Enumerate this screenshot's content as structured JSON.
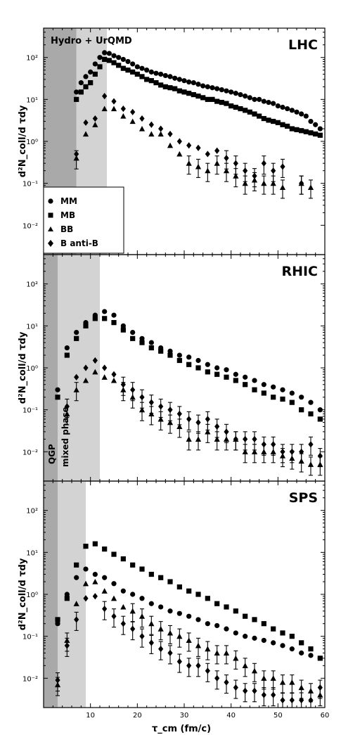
{
  "figure": {
    "xlabel": "τ_cm (fm/c)",
    "ylabel": "d²N_coll/d τdy",
    "xlim": [
      0,
      60
    ],
    "xticks": [
      10,
      20,
      30,
      40,
      50,
      60
    ],
    "colors": {
      "dark_band": "#a9a9a9",
      "light_band": "#d3d3d3",
      "marker": "#000000"
    }
  },
  "legend": {
    "placement": "lower-left of top panel",
    "items": [
      {
        "label": "MM",
        "marker": "circle"
      },
      {
        "label": "MB",
        "marker": "square"
      },
      {
        "label": "BB",
        "marker": "triangle"
      },
      {
        "label": "B anti-B",
        "marker": "diamond"
      }
    ]
  },
  "chart_data": [
    {
      "type": "scatter",
      "title": "LHC",
      "annotation": "Hydro + UrQMD",
      "yscale": "log",
      "ylim": [
        0.002,
        500
      ],
      "yticks": [
        "10²",
        "10¹",
        "10⁰",
        "10⁻¹",
        "10⁻²"
      ],
      "ytick_values": [
        100,
        10,
        1,
        0.1,
        0.01
      ],
      "bands": {
        "dark": [
          0,
          7
        ],
        "light": [
          7,
          13.5
        ]
      },
      "series": [
        {
          "name": "MM",
          "marker": "circle",
          "x": [
            7,
            8,
            9,
            10,
            11,
            12,
            13,
            14,
            15,
            16,
            17,
            18,
            19,
            20,
            21,
            22,
            23,
            24,
            25,
            26,
            27,
            28,
            29,
            30,
            31,
            32,
            33,
            34,
            35,
            36,
            37,
            38,
            39,
            40,
            41,
            42,
            43,
            44,
            45,
            46,
            47,
            48,
            49,
            50,
            51,
            52,
            53,
            54,
            55,
            56,
            57,
            58,
            59
          ],
          "y": [
            15,
            25,
            35,
            45,
            70,
            100,
            130,
            125,
            110,
            100,
            90,
            80,
            70,
            60,
            55,
            50,
            45,
            42,
            40,
            37,
            35,
            32,
            30,
            28,
            26,
            25,
            23,
            21,
            20,
            19,
            18,
            17,
            16,
            15,
            14,
            13,
            12,
            11,
            10,
            10,
            9,
            8.5,
            8,
            7,
            6.5,
            6,
            5.5,
            5,
            4.5,
            4,
            3,
            2.5,
            2
          ]
        },
        {
          "name": "MB",
          "marker": "square",
          "x": [
            7,
            8,
            9,
            10,
            11,
            12,
            13,
            14,
            15,
            16,
            17,
            18,
            19,
            20,
            21,
            22,
            23,
            24,
            25,
            26,
            27,
            28,
            29,
            30,
            31,
            32,
            33,
            34,
            35,
            36,
            37,
            38,
            39,
            40,
            41,
            42,
            43,
            44,
            45,
            46,
            47,
            48,
            49,
            50,
            51,
            52,
            53,
            54,
            55,
            56,
            57,
            58,
            59
          ],
          "y": [
            10,
            15,
            20,
            25,
            40,
            60,
            90,
            85,
            75,
            65,
            55,
            50,
            45,
            40,
            35,
            30,
            28,
            25,
            22,
            20,
            19,
            18,
            16,
            15,
            14,
            13,
            12,
            11,
            10,
            10,
            9,
            8.5,
            8,
            7,
            6.5,
            6,
            5.5,
            5,
            4.5,
            4,
            3.5,
            3.2,
            3,
            2.8,
            2.5,
            2.3,
            2,
            1.9,
            1.8,
            1.7,
            1.6,
            1.5,
            1.4
          ]
        },
        {
          "name": "BB",
          "marker": "triangle",
          "x": [
            7,
            9,
            11,
            13,
            15,
            17,
            19,
            21,
            23,
            25,
            27,
            29,
            31,
            33,
            35,
            37,
            39,
            41,
            43,
            45,
            47,
            49,
            51,
            55,
            57
          ],
          "y": [
            0.4,
            1.5,
            2.5,
            6,
            6,
            4,
            3,
            2,
            1.5,
            1.5,
            0.8,
            0.5,
            0.3,
            0.25,
            0.2,
            0.3,
            0.2,
            0.15,
            0.1,
            0.12,
            0.1,
            0.1,
            0.08,
            0.1,
            0.08
          ]
        },
        {
          "name": "B anti-B",
          "marker": "diamond",
          "x": [
            7,
            9,
            11,
            13,
            15,
            17,
            19,
            21,
            23,
            25,
            27,
            29,
            31,
            33,
            35,
            37,
            39,
            41,
            43,
            45,
            47,
            49,
            51,
            55
          ],
          "y": [
            0.5,
            2.8,
            3.5,
            12,
            9,
            6,
            5,
            3.5,
            2.5,
            2,
            1.5,
            1,
            0.8,
            0.7,
            0.5,
            0.6,
            0.4,
            0.3,
            0.2,
            0.15,
            0.3,
            0.2,
            0.25,
            0.1
          ]
        }
      ]
    },
    {
      "type": "scatter",
      "title": "RHIC",
      "annotations_vertical": [
        "QGP",
        "mixed phase"
      ],
      "yscale": "log",
      "ylim": [
        0.002,
        500
      ],
      "yticks": [
        "10²",
        "10¹",
        "10⁰",
        "10⁻¹",
        "10⁻²"
      ],
      "ytick_values": [
        100,
        10,
        1,
        0.1,
        0.01
      ],
      "bands": {
        "dark": [
          0,
          3
        ],
        "light": [
          3,
          12
        ]
      },
      "series": [
        {
          "name": "MM",
          "marker": "circle",
          "x": [
            3,
            5,
            7,
            9,
            11,
            13,
            15,
            17,
            19,
            21,
            23,
            25,
            27,
            29,
            31,
            33,
            35,
            37,
            39,
            41,
            43,
            45,
            47,
            49,
            51,
            53,
            55,
            57,
            59
          ],
          "y": [
            0.3,
            3,
            7,
            12,
            18,
            22,
            18,
            10,
            7,
            5,
            4,
            3,
            2.5,
            2,
            1.8,
            1.5,
            1.2,
            1,
            0.9,
            0.7,
            0.6,
            0.5,
            0.4,
            0.35,
            0.3,
            0.25,
            0.2,
            0.15,
            0.1
          ]
        },
        {
          "name": "MB",
          "marker": "square",
          "x": [
            3,
            5,
            7,
            9,
            11,
            13,
            15,
            17,
            19,
            21,
            23,
            25,
            27,
            29,
            31,
            33,
            35,
            37,
            39,
            41,
            43,
            45,
            47,
            49,
            51,
            53,
            55,
            57,
            59
          ],
          "y": [
            0.2,
            2,
            5,
            10,
            15,
            15,
            12,
            8,
            5,
            4,
            3,
            2.5,
            2,
            1.5,
            1.2,
            1,
            0.8,
            0.7,
            0.6,
            0.5,
            0.4,
            0.3,
            0.25,
            0.2,
            0.18,
            0.15,
            0.1,
            0.08,
            0.06
          ]
        },
        {
          "name": "BB",
          "marker": "triangle",
          "x": [
            5,
            7,
            9,
            11,
            13,
            15,
            17,
            19,
            21,
            23,
            25,
            27,
            29,
            31,
            33,
            35,
            37,
            39,
            41,
            43,
            45,
            47,
            49,
            51,
            53,
            55,
            57,
            59
          ],
          "y": [
            0.08,
            0.3,
            0.5,
            0.8,
            0.6,
            0.5,
            0.3,
            0.2,
            0.1,
            0.08,
            0.06,
            0.05,
            0.04,
            0.02,
            0.02,
            0.03,
            0.02,
            0.02,
            0.02,
            0.01,
            0.01,
            0.01,
            0.01,
            0.008,
            0.007,
            0.006,
            0.005,
            0.005
          ]
        },
        {
          "name": "B anti-B",
          "marker": "diamond",
          "x": [
            5,
            7,
            9,
            11,
            13,
            15,
            17,
            19,
            21,
            23,
            25,
            27,
            29,
            31,
            33,
            35,
            37,
            39,
            41,
            43,
            45,
            47,
            49,
            51,
            53,
            55,
            57,
            59
          ],
          "y": [
            0.12,
            0.6,
            1,
            1.5,
            1,
            0.7,
            0.4,
            0.3,
            0.2,
            0.15,
            0.12,
            0.1,
            0.08,
            0.06,
            0.05,
            0.06,
            0.04,
            0.03,
            0.02,
            0.02,
            0.02,
            0.015,
            0.015,
            0.01,
            0.01,
            0.01,
            0.015,
            0.008
          ]
        }
      ]
    },
    {
      "type": "scatter",
      "title": "SPS",
      "yscale": "log",
      "ylim": [
        0.002,
        500
      ],
      "yticks": [
        "10²",
        "10¹",
        "10⁰",
        "10⁻¹",
        "10⁻²"
      ],
      "ytick_values": [
        100,
        10,
        1,
        0.1,
        0.01
      ],
      "bands": {
        "dark": [
          0,
          3
        ],
        "light": [
          3,
          9
        ]
      },
      "series": [
        {
          "name": "MM",
          "marker": "circle",
          "x": [
            3,
            5,
            7,
            9,
            11,
            13,
            15,
            17,
            19,
            21,
            23,
            25,
            27,
            29,
            31,
            33,
            35,
            37,
            39,
            41,
            43,
            45,
            47,
            49,
            51,
            53,
            55,
            57,
            59
          ],
          "y": [
            0.2,
            1,
            2.5,
            4,
            3,
            2.5,
            1.8,
            1.2,
            1,
            0.8,
            0.6,
            0.5,
            0.4,
            0.35,
            0.3,
            0.25,
            0.2,
            0.18,
            0.15,
            0.12,
            0.1,
            0.09,
            0.08,
            0.07,
            0.06,
            0.05,
            0.04,
            0.035,
            0.03
          ]
        },
        {
          "name": "MB",
          "marker": "square",
          "x": [
            3,
            5,
            7,
            9,
            11,
            13,
            15,
            17,
            19,
            21,
            23,
            25,
            27,
            29,
            31,
            33,
            35,
            37,
            39,
            41,
            43,
            45,
            47,
            49,
            51,
            53,
            55,
            57,
            59
          ],
          "y": [
            0.25,
            0.8,
            5,
            14,
            16,
            12,
            9,
            7,
            5,
            4,
            3,
            2.5,
            2,
            1.5,
            1.2,
            1,
            0.8,
            0.6,
            0.5,
            0.4,
            0.3,
            0.25,
            0.2,
            0.15,
            0.12,
            0.1,
            0.07,
            0.05,
            0.03
          ]
        },
        {
          "name": "BB",
          "marker": "triangle",
          "x": [
            3,
            5,
            7,
            9,
            11,
            13,
            15,
            17,
            19,
            21,
            23,
            25,
            27,
            29,
            31,
            33,
            35,
            37,
            39,
            41,
            43,
            45,
            47,
            49,
            51,
            53,
            55,
            57,
            59
          ],
          "y": [
            0.007,
            0.08,
            0.6,
            1.8,
            2,
            1.2,
            0.8,
            0.5,
            0.4,
            0.3,
            0.2,
            0.15,
            0.12,
            0.1,
            0.08,
            0.06,
            0.05,
            0.04,
            0.04,
            0.03,
            0.02,
            0.015,
            0.01,
            0.01,
            0.008,
            0.008,
            0.006,
            0.005,
            0.004
          ]
        },
        {
          "name": "B anti-B",
          "marker": "diamond",
          "x": [
            3,
            5,
            7,
            9,
            11,
            13,
            15,
            17,
            19,
            21,
            23,
            25,
            27,
            29,
            31,
            33,
            35,
            37,
            39,
            41,
            43,
            45,
            47,
            49,
            51,
            53,
            55,
            57,
            59
          ],
          "y": [
            0.009,
            0.06,
            0.25,
            0.8,
            0.9,
            0.45,
            0.3,
            0.2,
            0.15,
            0.1,
            0.07,
            0.05,
            0.04,
            0.025,
            0.02,
            0.02,
            0.015,
            0.01,
            0.008,
            0.006,
            0.005,
            0.005,
            0.004,
            0.004,
            0.003,
            0.003,
            0.003,
            0.003,
            0.006
          ]
        }
      ]
    }
  ]
}
